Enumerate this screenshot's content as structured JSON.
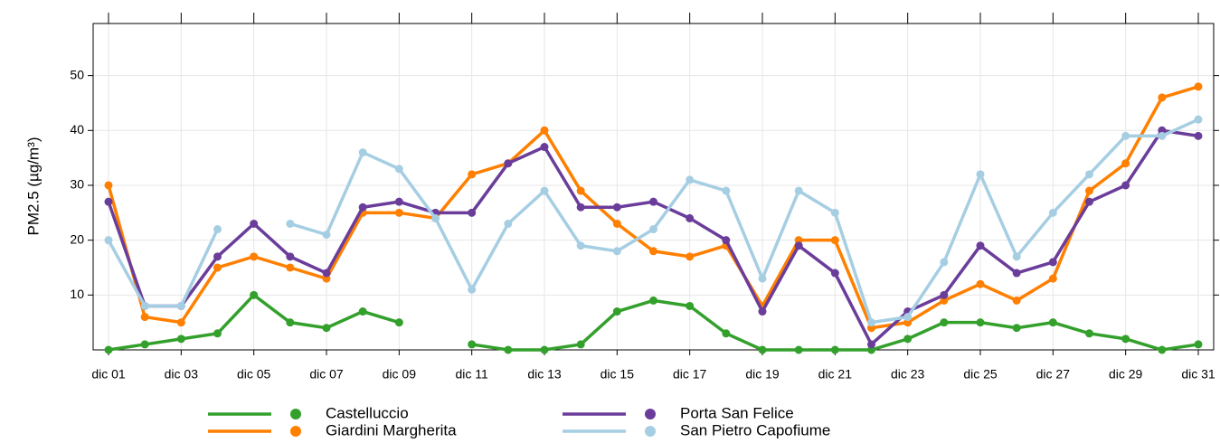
{
  "chart_data": {
    "type": "line",
    "y_label": "PM2.5 (µg/m³)",
    "categories": [
      "dic 01",
      null,
      "dic 03",
      null,
      "dic 05",
      null,
      "dic 07",
      null,
      "dic 09",
      null,
      "dic 11",
      null,
      "dic 13",
      null,
      "dic 15",
      null,
      "dic 17",
      null,
      "dic 19",
      null,
      "dic 21",
      null,
      "dic 23",
      null,
      "dic 25",
      null,
      "dic 27",
      null,
      "dic 29",
      null,
      "dic 31"
    ],
    "series": [
      {
        "name": "Castelluccio",
        "color": "#33a02c",
        "values": [
          0,
          1,
          2,
          3,
          10,
          5,
          4,
          7,
          5,
          null,
          1,
          0,
          0,
          1,
          7,
          9,
          8,
          3,
          0,
          0,
          0,
          0,
          2,
          5,
          5,
          4,
          5,
          3,
          2,
          0,
          1
        ]
      },
      {
        "name": "Giardini Margherita",
        "color": "#ff7f00",
        "values": [
          30,
          6,
          5,
          15,
          17,
          15,
          13,
          25,
          25,
          24,
          32,
          34,
          40,
          29,
          23,
          18,
          17,
          19,
          8,
          20,
          20,
          4,
          5,
          9,
          12,
          9,
          13,
          29,
          34,
          46,
          48
        ]
      },
      {
        "name": "Porta San Felice",
        "color": "#6a3d9a",
        "values": [
          27,
          8,
          8,
          17,
          23,
          17,
          14,
          26,
          27,
          25,
          25,
          34,
          37,
          26,
          26,
          27,
          24,
          20,
          7,
          19,
          14,
          1,
          7,
          10,
          19,
          14,
          16,
          27,
          30,
          40,
          39
        ]
      },
      {
        "name": "San Pietro Capofiume",
        "color": "#a6cee3",
        "values": [
          20,
          8,
          8,
          22,
          null,
          23,
          21,
          36,
          33,
          24,
          11,
          23,
          29,
          19,
          18,
          22,
          31,
          29,
          13,
          29,
          25,
          5,
          6,
          16,
          32,
          17,
          25,
          32,
          39,
          39,
          42
        ]
      }
    ],
    "ylim": [
      0,
      59.5
    ],
    "yticks": [
      10,
      20,
      30,
      40,
      50
    ],
    "grid": true
  }
}
